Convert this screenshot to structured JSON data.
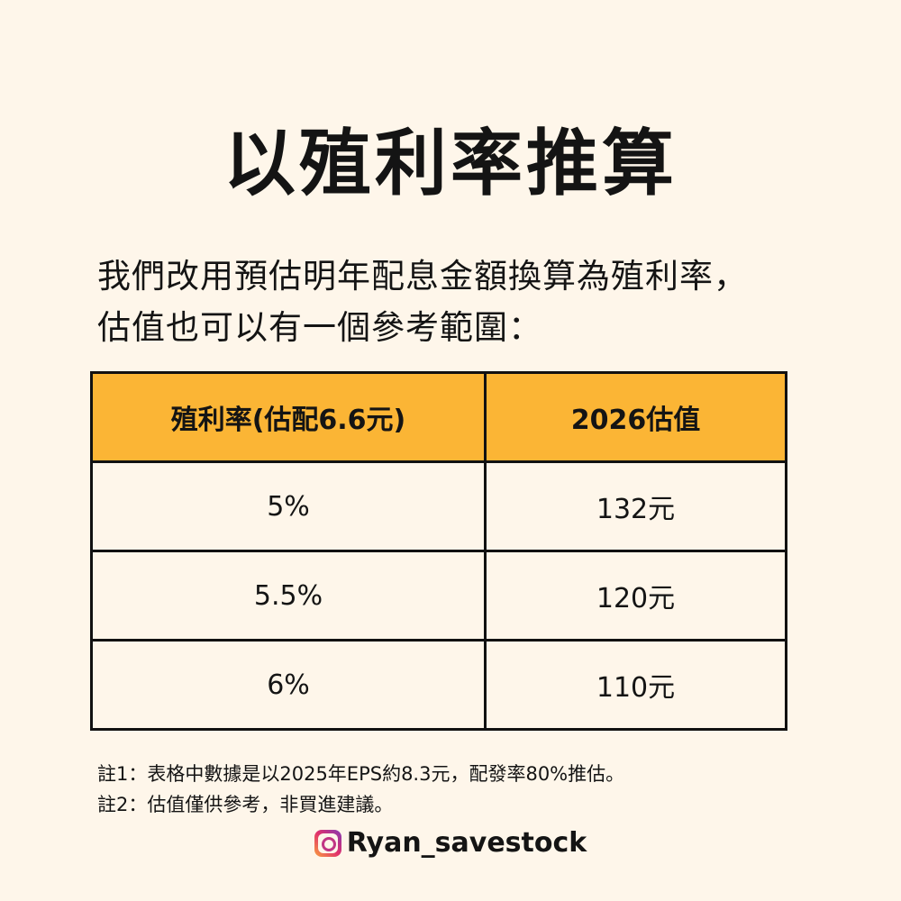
{
  "title": "以殖利率推算",
  "intro": {
    "line1": "我們改用預估明年配息金額換算為殖利率，",
    "line2": "估值也可以有一個參考範圍："
  },
  "table": {
    "headers": [
      "殖利率(估配6.6元)",
      "2026估值"
    ],
    "header_bg": "#fbb535",
    "rows": [
      [
        "5%",
        "132元"
      ],
      [
        "5.5%",
        "120元"
      ],
      [
        "6%",
        "110元"
      ]
    ]
  },
  "notes": [
    "註1：表格中數據是以2025年EPS約8.3元，配發率80%推估。",
    "註2：估值僅供參考，非買進建議。"
  ],
  "footer": {
    "icon": "instagram-icon",
    "handle": "Ryan_savestock"
  },
  "colors": {
    "background": "#fef6ea",
    "accent": "#fbb535",
    "text": "#141414"
  }
}
